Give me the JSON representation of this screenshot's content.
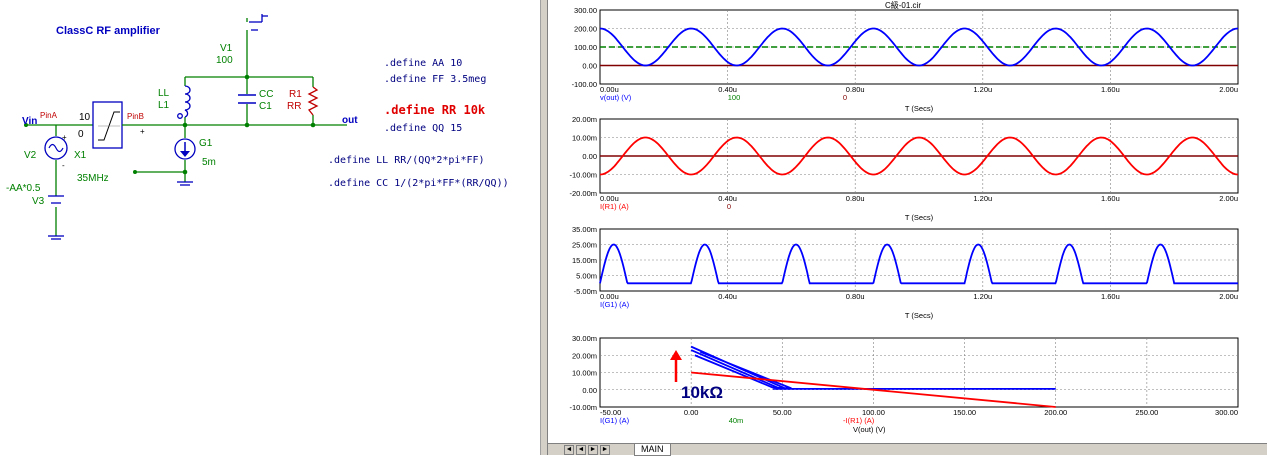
{
  "schematic": {
    "title": "ClassC  RF amplifier",
    "labels": {
      "v1": "V1",
      "v1_val": "100",
      "ll": "LL",
      "l1": "L1",
      "cc": "CC",
      "c1": "C1",
      "r1": "R1",
      "rr": "RR",
      "g1": "G1",
      "g1_val": "5m",
      "vin": "Vin",
      "pina": "PinA",
      "pinb": "PinB",
      "v2": "V2",
      "x1": "X1",
      "x1_freq": "35MHz",
      "v3_val": "-AA*0.5",
      "v3": "V3",
      "out": "out",
      "box_top": "10",
      "box_bot": "0",
      "plus": "+",
      "minus": "-"
    },
    "defines": [
      ".define AA 10",
      ".define FF 3.5meg",
      ".define RR 10k",
      ".define QQ 15",
      ".define LL  RR/(QQ*2*pi*FF)",
      ".define CC 1/(2*pi*FF*(RR/QQ))"
    ]
  },
  "plot_window": {
    "title": "C級-01.cir",
    "annotation": "10kΩ",
    "plots": [
      {
        "yticks": [
          "300.00",
          "200.00",
          "100.00",
          "0.00",
          "-100.00"
        ],
        "xticks": [
          "0.00u",
          "0.40u",
          "0.80u",
          "1.20u",
          "1.60u",
          "2.00u"
        ],
        "trace": "v(out) (V)",
        "val1": "100",
        "val2": "0",
        "xlabel": "T (Secs)"
      },
      {
        "yticks": [
          "20.00m",
          "10.00m",
          "0.00",
          "-10.00m",
          "-20.00m"
        ],
        "xticks": [
          "0.00u",
          "0.40u",
          "0.80u",
          "1.20u",
          "1.60u",
          "2.00u"
        ],
        "trace": "I(R1) (A)",
        "val1": "0",
        "xlabel": "T (Secs)"
      },
      {
        "yticks": [
          "35.00m",
          "25.00m",
          "15.00m",
          "5.00m",
          "-5.00m"
        ],
        "xticks": [
          "0.00u",
          "0.40u",
          "0.80u",
          "1.20u",
          "1.60u",
          "2.00u"
        ],
        "trace": "I(G1) (A)",
        "xlabel": "T (Secs)"
      },
      {
        "yticks": [
          "30.00m",
          "20.00m",
          "10.00m",
          "0.00",
          "-10.00m"
        ],
        "xticks": [
          "-50.00",
          "0.00",
          "50.00",
          "100.00",
          "150.00",
          "200.00",
          "250.00",
          "300.00"
        ],
        "trace": "I(G1) (A)",
        "val1": "40m",
        "trace2": "-I(R1) (A)",
        "xlabel": "V(out) (V)"
      }
    ]
  },
  "tabbar": {
    "nav": [
      "◄",
      "◄",
      "►",
      "►"
    ],
    "tab": "MAIN"
  },
  "colors": {
    "schematic_wire": "#008000",
    "schematic_part": "#0000c0",
    "define_text": "#000080",
    "define_highlight": "#e00000",
    "trace_blue": "#0000ff",
    "trace_red": "#ff0000",
    "trace_darkred": "#800000",
    "trace_green_dash": "#008000",
    "grid": "#808080"
  },
  "chart_data": [
    {
      "type": "line",
      "x": [
        0,
        2.0
      ],
      "xunit": "u",
      "series": [
        {
          "name": "v(out) (V)",
          "description_values": {
            "min": 0,
            "max": 200,
            "periods_in_window": 7
          }
        },
        {
          "name": "100",
          "values_const": 100
        },
        {
          "name": "0",
          "values_const": 0
        }
      ],
      "ylim": [
        -100,
        300
      ],
      "xlim": [
        0,
        2.0
      ],
      "xlabel": "T (Secs)",
      "grid": true
    },
    {
      "type": "line",
      "series": [
        {
          "name": "I(R1) (A)",
          "description_values": {
            "min": -0.01,
            "max": 0.01,
            "periods_in_window": 7
          }
        },
        {
          "name": "0",
          "values_const": 0
        }
      ],
      "ylim": [
        -0.02,
        0.02
      ],
      "xlim": [
        0,
        2.0
      ],
      "xlabel": "T (Secs)",
      "grid": true
    },
    {
      "type": "line",
      "series": [
        {
          "name": "I(G1) (A)",
          "description_values": {
            "min": 0,
            "max": 0.025,
            "pulses_in_window": 7
          }
        }
      ],
      "ylim": [
        -0.005,
        0.035
      ],
      "xlim": [
        0,
        2.0
      ],
      "xlabel": "T (Secs)",
      "grid": true
    },
    {
      "type": "line",
      "series": [
        {
          "name": "I(G1) (A)",
          "points": [
            [
              0,
              0.025
            ],
            [
              50,
              0.0
            ],
            [
              200,
              0.0
            ]
          ]
        },
        {
          "name": "-I(R1) (A)",
          "points": [
            [
              0,
              0.01
            ],
            [
              200,
              -0.01
            ]
          ]
        }
      ],
      "ylim": [
        -0.01,
        0.03
      ],
      "xlim": [
        -50,
        300
      ],
      "xlabel": "V(out) (V)",
      "grid": true
    }
  ]
}
